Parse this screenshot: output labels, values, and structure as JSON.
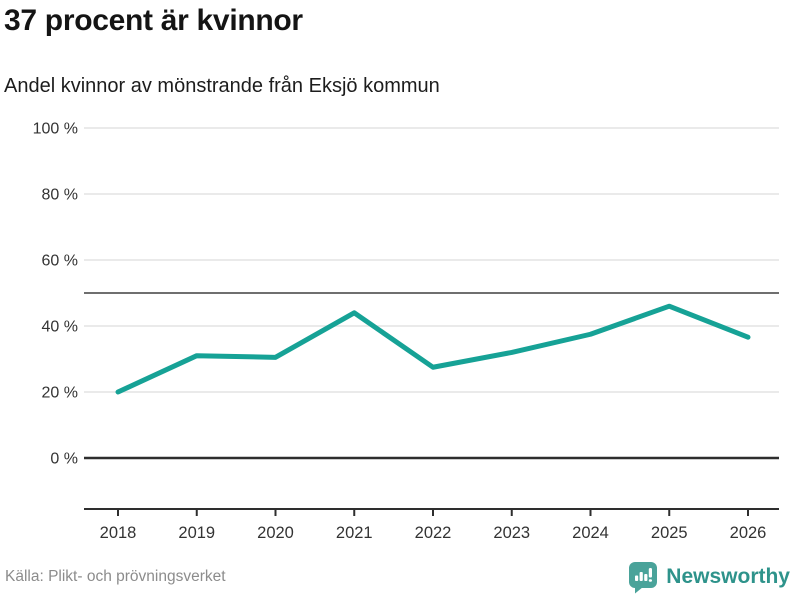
{
  "header": {
    "title": "37 procent är kvinnor",
    "subtitle": "Andel kvinnor av mönstrande från Eksjö kommun"
  },
  "footer": {
    "source": "Källa: Plikt- och prövningsverket",
    "brand": "Newsworthy"
  },
  "icons": {
    "brand_icon": "newsworthy-speech-bubble-bar-chart"
  },
  "colors": {
    "accent_line": "#16a296",
    "brand_icon": "#4aa39a",
    "brand_text": "#2e938b",
    "grid_light": "#e4e4e4",
    "reference_line": "#6f6f6f",
    "axis_dark": "#2e2e2e",
    "tick_text": "#333333",
    "source_text": "#8c8c8c"
  },
  "chart_data": {
    "type": "line",
    "title": "37 procent är kvinnor",
    "subtitle": "Andel kvinnor av mönstrande från Eksjö kommun",
    "x": [
      "2018",
      "2019",
      "2020",
      "2021",
      "2022",
      "2023",
      "2024",
      "2025",
      "2026"
    ],
    "series": [
      {
        "name": "Andel kvinnor av mönstrande",
        "values": [
          20,
          31,
          30.5,
          44,
          27.5,
          32,
          37.5,
          46,
          36.6
        ]
      }
    ],
    "xlabel": "",
    "ylabel": "",
    "ylim": [
      0,
      100
    ],
    "yticks": [
      0,
      20,
      40,
      60,
      80,
      100
    ],
    "ytick_format": "{v} %",
    "reference_line": 50,
    "line_color": "#16a296",
    "grid": true,
    "legend": "none"
  }
}
